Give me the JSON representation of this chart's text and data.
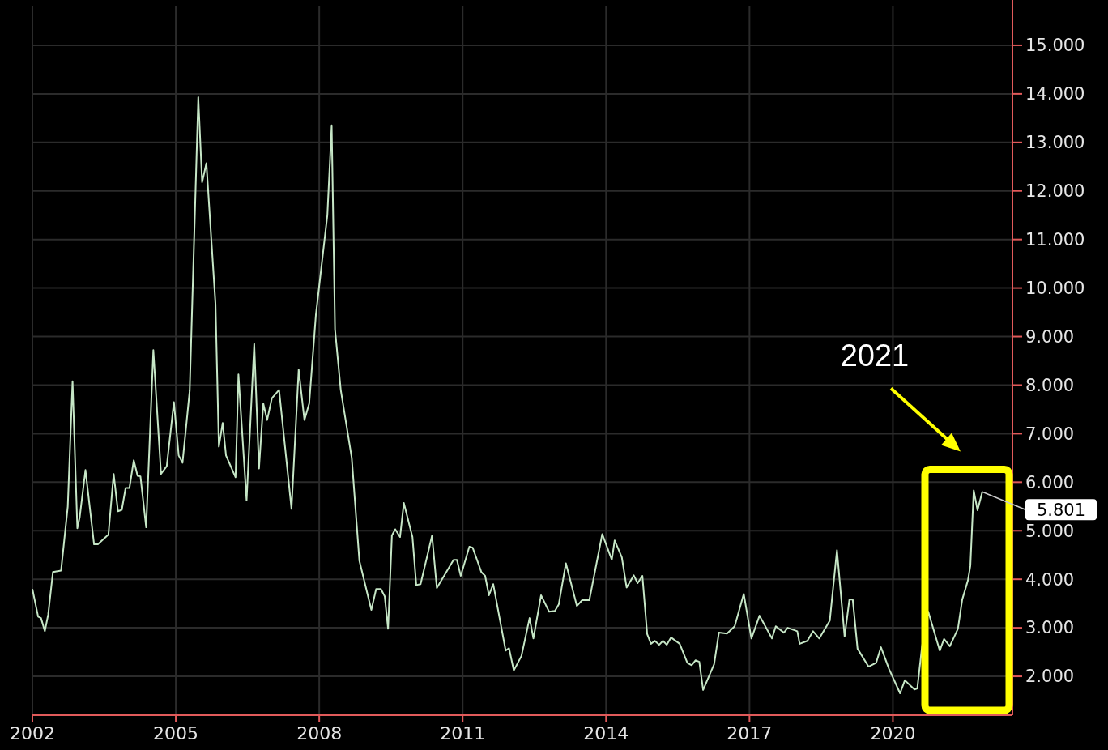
{
  "chart_data": {
    "type": "line",
    "xlim": [
      2002,
      2022.5
    ],
    "xticks": [
      2002,
      2005,
      2008,
      2011,
      2014,
      2017,
      2020
    ],
    "ylim": [
      1.2,
      15.8
    ],
    "yticks": [
      {
        "value": 2,
        "label": "2.000"
      },
      {
        "value": 3,
        "label": "3.000"
      },
      {
        "value": 4,
        "label": "4.000"
      },
      {
        "value": 5,
        "label": "5.000"
      },
      {
        "value": 6,
        "label": "6.000"
      },
      {
        "value": 7,
        "label": "7.000"
      },
      {
        "value": 8,
        "label": "8.000"
      },
      {
        "value": 9,
        "label": "9.000"
      },
      {
        "value": 10,
        "label": "10.000"
      },
      {
        "value": 11,
        "label": "11.000"
      },
      {
        "value": 12,
        "label": "12.000"
      },
      {
        "value": 13,
        "label": "13.000"
      },
      {
        "value": 14,
        "label": "14.000"
      },
      {
        "value": 15,
        "label": "15.000"
      }
    ],
    "grid": true,
    "marker": "none",
    "line_style": "solid",
    "series": [
      {
        "color": "#c6e6c6",
        "x": [
          2002.0,
          2002.12,
          2002.18,
          2002.26,
          2002.33,
          2002.43,
          2002.6,
          2002.74,
          2002.84,
          2002.94,
          2002.99,
          2003.11,
          2003.29,
          2003.37,
          2003.59,
          2003.7,
          2003.79,
          2003.87,
          2003.95,
          2004.03,
          2004.12,
          2004.2,
          2004.26,
          2004.38,
          2004.53,
          2004.69,
          2004.81,
          2004.96,
          2005.06,
          2005.14,
          2005.29,
          2005.47,
          2005.55,
          2005.64,
          2005.83,
          2005.9,
          2005.98,
          2006.05,
          2006.25,
          2006.31,
          2006.48,
          2006.64,
          2006.74,
          2006.83,
          2006.91,
          2007.01,
          2007.16,
          2007.42,
          2007.57,
          2007.69,
          2007.79,
          2007.93,
          2008.17,
          2008.26,
          2008.33,
          2008.45,
          2008.68,
          2008.84,
          2009.09,
          2009.19,
          2009.29,
          2009.37,
          2009.44,
          2009.52,
          2009.59,
          2009.69,
          2009.77,
          2009.95,
          2010.03,
          2010.12,
          2010.36,
          2010.46,
          2010.81,
          2010.88,
          2010.96,
          2011.14,
          2011.21,
          2011.39,
          2011.47,
          2011.55,
          2011.64,
          2011.9,
          2011.97,
          2012.07,
          2012.23,
          2012.4,
          2012.48,
          2012.64,
          2012.81,
          2012.93,
          2013.01,
          2013.16,
          2013.39,
          2013.5,
          2013.65,
          2013.92,
          2014.12,
          2014.18,
          2014.33,
          2014.43,
          2014.58,
          2014.66,
          2014.76,
          2014.86,
          2014.94,
          2015.02,
          2015.11,
          2015.19,
          2015.27,
          2015.36,
          2015.54,
          2015.7,
          2015.79,
          2015.87,
          2015.95,
          2016.03,
          2016.26,
          2016.36,
          2016.53,
          2016.69,
          2016.88,
          2017.04,
          2017.21,
          2017.47,
          2017.55,
          2017.72,
          2017.8,
          2018.0,
          2018.05,
          2018.21,
          2018.33,
          2018.46,
          2018.68,
          2018.83,
          2018.99,
          2019.09,
          2019.16,
          2019.26,
          2019.49,
          2019.65,
          2019.75,
          2019.92,
          2020.15,
          2020.25,
          2020.45,
          2020.51,
          2020.61,
          2020.74,
          2020.98,
          2021.07,
          2021.19,
          2021.36,
          2021.45,
          2021.57,
          2021.62,
          2021.69,
          2021.77,
          2021.87
        ],
        "values": [
          3.8,
          3.23,
          3.2,
          2.93,
          3.27,
          4.15,
          4.18,
          5.5,
          8.08,
          5.05,
          5.28,
          6.25,
          4.72,
          4.72,
          4.92,
          6.17,
          5.4,
          5.43,
          5.88,
          5.88,
          6.45,
          6.13,
          6.12,
          5.07,
          8.72,
          6.17,
          6.33,
          7.65,
          6.55,
          6.4,
          7.88,
          13.93,
          12.18,
          12.57,
          9.67,
          6.73,
          7.22,
          6.55,
          6.1,
          8.22,
          5.62,
          8.85,
          6.28,
          7.62,
          7.28,
          7.73,
          7.9,
          5.45,
          8.32,
          7.28,
          7.62,
          9.45,
          11.5,
          13.35,
          9.15,
          7.9,
          6.5,
          4.38,
          3.37,
          3.8,
          3.8,
          3.65,
          2.98,
          4.9,
          5.03,
          4.87,
          5.57,
          4.87,
          3.88,
          3.9,
          4.9,
          3.82,
          4.4,
          4.4,
          4.07,
          4.67,
          4.65,
          4.15,
          4.07,
          3.67,
          3.9,
          2.53,
          2.58,
          2.12,
          2.42,
          3.2,
          2.78,
          3.67,
          3.33,
          3.35,
          3.48,
          4.33,
          3.45,
          3.57,
          3.57,
          4.93,
          4.4,
          4.8,
          4.45,
          3.83,
          4.08,
          3.92,
          4.07,
          2.87,
          2.67,
          2.73,
          2.65,
          2.73,
          2.65,
          2.8,
          2.67,
          2.28,
          2.23,
          2.33,
          2.3,
          1.72,
          2.25,
          2.9,
          2.88,
          3.03,
          3.7,
          2.78,
          3.25,
          2.78,
          3.03,
          2.9,
          3.0,
          2.93,
          2.67,
          2.73,
          2.93,
          2.78,
          3.15,
          4.6,
          2.82,
          3.58,
          3.58,
          2.57,
          2.2,
          2.28,
          2.6,
          2.15,
          1.65,
          1.92,
          1.73,
          1.75,
          2.62,
          3.33,
          2.53,
          2.77,
          2.62,
          2.98,
          3.58,
          3.98,
          4.28,
          5.83,
          5.42,
          5.801
        ]
      }
    ],
    "annotations": [
      "2021",
      {
        "text": "5.801",
        "x": 2021.87,
        "y": 5.801
      }
    ]
  }
}
